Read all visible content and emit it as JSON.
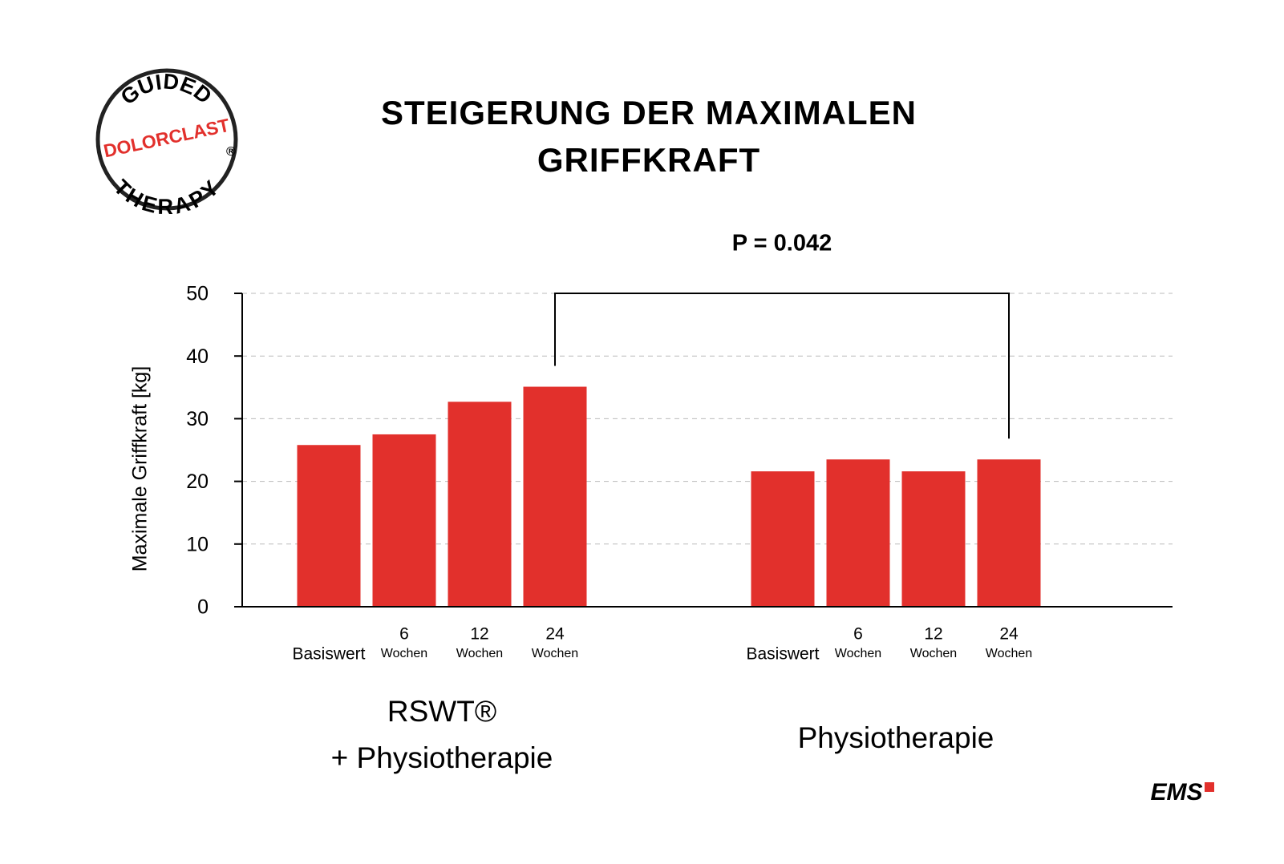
{
  "chart_data": {
    "type": "bar",
    "title_lines": [
      "STEIGERUNG DER MAXIMALEN",
      "GRIFFKRAFT"
    ],
    "y_label": "Maximale Griffkraft [kg]",
    "annotation": "P = 0.042",
    "color": "#e2302c",
    "ylim": [
      0,
      50
    ],
    "yticks": [
      0,
      10,
      20,
      30,
      40,
      50
    ],
    "grid": true,
    "groups": [
      {
        "name_lines": [
          "RSWT®",
          "+ Physiotherapie"
        ],
        "categories": [
          [
            "Basiswert"
          ],
          [
            "6",
            "Wochen"
          ],
          [
            "12",
            "Wochen"
          ],
          [
            "24",
            "Wochen"
          ]
        ],
        "values": [
          25.8,
          27.5,
          32.7,
          35.1
        ]
      },
      {
        "name_lines": [
          "Physiotherapie"
        ],
        "categories": [
          [
            "Basiswert"
          ],
          [
            "6",
            "Wochen"
          ],
          [
            "12",
            "Wochen"
          ],
          [
            "24",
            "Wochen"
          ]
        ],
        "values": [
          21.6,
          23.5,
          21.6,
          23.5
        ]
      }
    ]
  },
  "logo": {
    "top": "GUIDED",
    "middle": "DOLORCLAST",
    "bottom": "THERAPY",
    "mark": "®"
  },
  "brand": "EMS"
}
